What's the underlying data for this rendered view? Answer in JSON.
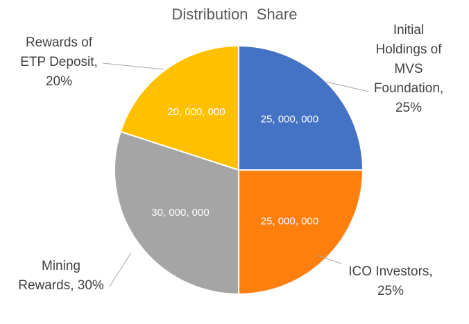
{
  "chart_data": {
    "type": "pie",
    "title": "Distribution  Share",
    "slices": [
      {
        "label_lines": [
          "Initial",
          "Holdings of",
          "MVS",
          "Foundation,",
          "25%"
        ],
        "value": 25000000,
        "value_label": "25, 000, 000",
        "percent": 25,
        "color": "#4472C4"
      },
      {
        "label_lines": [
          "ICO Investors,",
          "25%"
        ],
        "value": 25000000,
        "value_label": "25, 000, 000",
        "percent": 25,
        "color": "#FF7F0E"
      },
      {
        "label_lines": [
          "Mining",
          "Rewards, 30%"
        ],
        "value": 30000000,
        "value_label": "30, 000, 000",
        "percent": 30,
        "color": "#A5A5A5"
      },
      {
        "label_lines": [
          "Rewards of",
          "ETP Deposit,",
          "20%"
        ],
        "value": 20000000,
        "value_label": "20, 000, 000",
        "percent": 20,
        "color": "#FFC000"
      }
    ]
  }
}
